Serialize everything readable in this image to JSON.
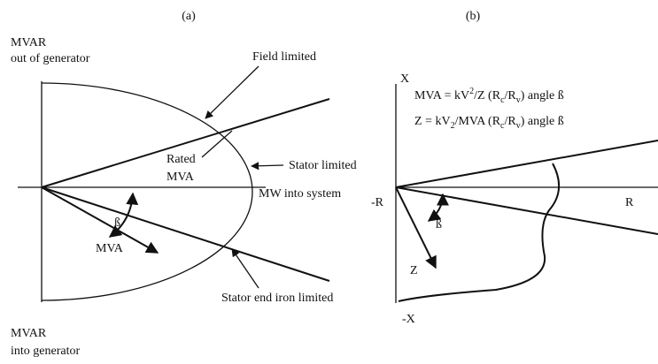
{
  "panel_a": {
    "label": "(a)",
    "y_top": [
      "MVAR",
      "out of generator"
    ],
    "y_bottom": [
      "MVAR",
      "into generator"
    ],
    "x_axis": "MW into system",
    "field": "Field limited",
    "rated": [
      "Rated",
      "MVA"
    ],
    "stator": "Stator limited",
    "end_iron": "Stator end iron limited",
    "angle": "ß",
    "vector": "MVA"
  },
  "panel_b": {
    "label": "(b)",
    "x_pos": "X",
    "x_neg": "-X",
    "r_pos": "R",
    "r_neg": "-R",
    "angle": "ß",
    "vector": "Z",
    "formula1": [
      "MVA = kV",
      "2",
      "/Z (R",
      "c",
      "/R",
      "v",
      ") angle ß"
    ],
    "formula2": [
      "Z = kV",
      "2",
      "/MVA (R",
      "c",
      "/R",
      "v",
      ") angle ß"
    ]
  }
}
